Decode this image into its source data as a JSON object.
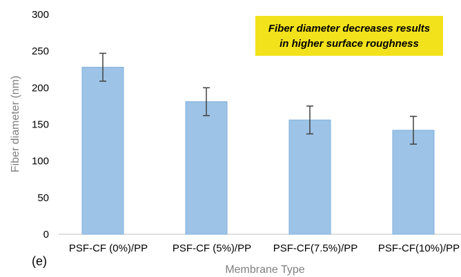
{
  "chart_data": {
    "type": "bar",
    "categories": [
      "PSF-CF (0%)/PP",
      "PSF-CF (5%)/PP",
      "PSF-CF(7.5%)/PP",
      "PSF-CF(10%)/PP"
    ],
    "values": [
      228,
      181,
      156,
      142
    ],
    "error": [
      19,
      19,
      19,
      19
    ],
    "title": "",
    "xlabel": "Membrane Type",
    "ylabel": "Fiber diameter (nm)",
    "ylim": [
      0,
      300
    ],
    "yticks": [
      "0",
      "50",
      "100",
      "150",
      "200",
      "250",
      "300"
    ],
    "grid": false,
    "bar_color": "#9dc3e6",
    "bar_edge_color": "#7fb0dd",
    "error_bar_color": "#404040",
    "annotation": {
      "lines": [
        "Fiber diameter decreases results",
        "in higher surface roughness"
      ],
      "background": "#f2e21c"
    },
    "panel_label": "(e)"
  }
}
